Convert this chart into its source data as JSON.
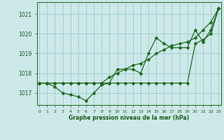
{
  "xlabel": "Graphe pression niveau de la mer (hPa)",
  "x": [
    0,
    1,
    2,
    3,
    4,
    5,
    6,
    7,
    8,
    9,
    10,
    11,
    12,
    13,
    14,
    15,
    16,
    17,
    18,
    19,
    20,
    21,
    22,
    23
  ],
  "series": [
    [
      1017.5,
      1017.5,
      1017.3,
      1017.0,
      1016.9,
      1016.8,
      1016.6,
      1017.0,
      1017.4,
      1017.5,
      1018.2,
      1018.2,
      1018.2,
      1018.0,
      1019.0,
      1019.8,
      1019.5,
      1019.3,
      1019.3,
      1019.3,
      1020.2,
      1019.6,
      1020.2,
      1021.3
    ],
    [
      1017.5,
      1017.5,
      1017.5,
      1017.5,
      1017.5,
      1017.5,
      1017.5,
      1017.5,
      1017.5,
      1017.8,
      1018.0,
      1018.2,
      1018.4,
      1018.5,
      1018.7,
      1019.0,
      1019.2,
      1019.4,
      1019.5,
      1019.6,
      1019.8,
      1020.2,
      1020.6,
      1021.3
    ],
    [
      1017.5,
      1017.5,
      1017.5,
      1017.5,
      1017.5,
      1017.5,
      1017.5,
      1017.5,
      1017.5,
      1017.5,
      1017.5,
      1017.5,
      1017.5,
      1017.5,
      1017.5,
      1017.5,
      1017.5,
      1017.5,
      1017.5,
      1017.5,
      1019.5,
      1019.7,
      1020.0,
      1021.3
    ]
  ],
  "line_color": "#1a6b1a",
  "marker": "D",
  "marker_size": 2.5,
  "bg_color": "#cce8e8",
  "grid_color": "#99cccc",
  "text_color": "#1a5c1a",
  "ylim": [
    1016.4,
    1021.6
  ],
  "yticks": [
    1017,
    1018,
    1019,
    1020,
    1021
  ],
  "xlim": [
    -0.3,
    23.3
  ],
  "figsize": [
    3.2,
    2.0
  ],
  "dpi": 100
}
